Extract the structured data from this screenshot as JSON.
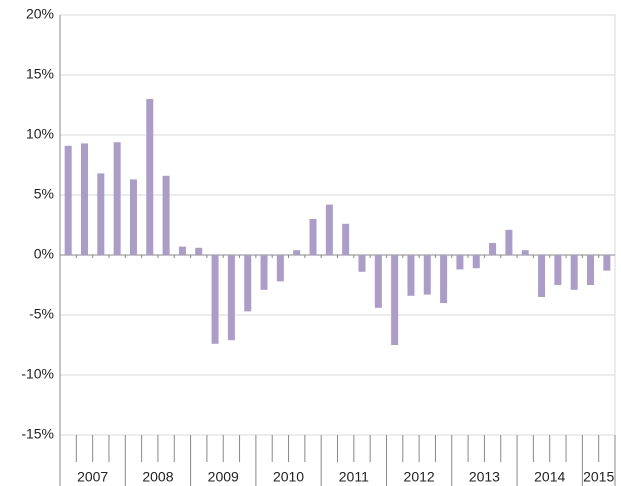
{
  "chart_data": {
    "type": "bar",
    "color": "#ac9cc9",
    "grid": true,
    "categories": [
      "2007",
      null,
      null,
      null,
      "2008",
      null,
      null,
      null,
      "2009",
      null,
      null,
      null,
      "2010",
      null,
      null,
      null,
      "2011",
      null,
      null,
      null,
      "2012",
      null,
      null,
      null,
      "2013",
      null,
      null,
      null,
      "2014",
      null,
      null,
      null,
      "2015",
      null
    ],
    "values": [
      9.1,
      9.3,
      6.8,
      9.4,
      6.3,
      13.0,
      6.6,
      0.7,
      0.6,
      -7.4,
      -7.1,
      -4.7,
      -2.9,
      -2.2,
      0.4,
      3.0,
      4.2,
      2.6,
      -1.4,
      -4.4,
      -7.5,
      -3.4,
      -3.3,
      -4.0,
      -1.2,
      -1.1,
      1.0,
      2.1,
      0.4,
      -3.5,
      -2.5,
      -2.9,
      -2.5,
      -1.3
    ],
    "ylim": [
      -15,
      20
    ],
    "yticks": [
      {
        "value": -15,
        "label": "-15%"
      },
      {
        "value": -10,
        "label": "-10%"
      },
      {
        "value": -5,
        "label": "-5%"
      },
      {
        "value": 0,
        "label": "0%"
      },
      {
        "value": 5,
        "label": "5%"
      },
      {
        "value": 10,
        "label": "10%"
      },
      {
        "value": 15,
        "label": "15%"
      },
      {
        "value": 20,
        "label": "20%"
      }
    ]
  }
}
